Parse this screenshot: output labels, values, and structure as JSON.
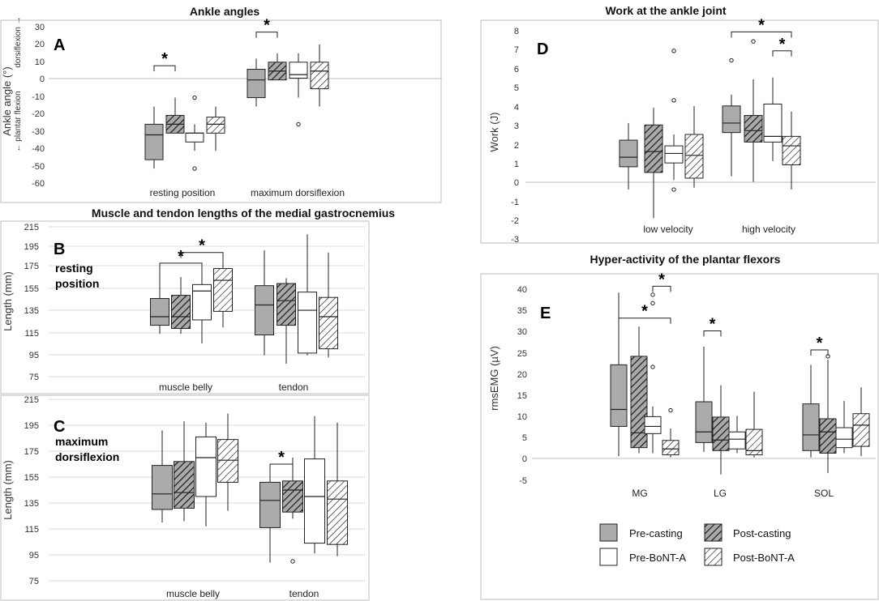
{
  "legend": {
    "entries": [
      {
        "name": "Pre-casting",
        "fill": "gray"
      },
      {
        "name": "Post-casting",
        "fill": "dark-hatch"
      },
      {
        "name": "Pre-BoNT-A",
        "fill": "white"
      },
      {
        "name": "Post-BoNT-A",
        "fill": "hatch"
      }
    ]
  },
  "colors": {
    "pre_casting": "#ababab",
    "dark_hatch_bg": "#a9a9a9",
    "box_edge": "#222222",
    "frame": "#bdbdbd",
    "grid": "#d9d9d9"
  },
  "chart_data": [
    {
      "id": "A",
      "panel_label": "A",
      "type": "box",
      "title": "Ankle angles",
      "ylabel": "Ankle angle (°)",
      "y_annotations": {
        "upper": "dorsiflexion →",
        "lower": "← plantar flexion"
      },
      "ylim": [
        -60,
        30
      ],
      "yticks": [
        -60,
        -50,
        -40,
        -30,
        -20,
        -10,
        0,
        10,
        20,
        30
      ],
      "grid": false,
      "categories": [
        "resting position",
        "maximum dorsiflexion"
      ],
      "series": [
        "Pre-casting",
        "Post-casting",
        "Pre-BoNT-A",
        "Post-BoNT-A"
      ],
      "boxes": [
        [
          {
            "min": -50,
            "q1": -45,
            "median": -31,
            "q3": -25,
            "max": -15,
            "outliers": []
          },
          {
            "min": -30,
            "q1": -30,
            "median": -25,
            "q3": -20,
            "max": -10,
            "outliers": []
          },
          {
            "min": -40,
            "q1": -35,
            "median": -30,
            "q3": -30,
            "max": -25,
            "outliers": [
              -10,
              -50
            ]
          },
          {
            "min": -40,
            "q1": -30,
            "median": -25,
            "q3": -21,
            "max": -15,
            "outliers": []
          }
        ],
        [
          {
            "min": -15,
            "q1": -10,
            "median": 0,
            "q3": 6,
            "max": 12,
            "outliers": []
          },
          {
            "min": 0,
            "q1": 0,
            "median": 5,
            "q3": 10,
            "max": 15,
            "outliers": []
          },
          {
            "min": -10,
            "q1": 1,
            "median": 3,
            "q3": 10,
            "max": 15,
            "outliers": [
              -25
            ]
          },
          {
            "min": -15,
            "q1": -5,
            "median": 5,
            "q3": 10,
            "max": 20,
            "outliers": []
          }
        ]
      ],
      "significance": [
        {
          "category": 0,
          "from": 0,
          "to": 1,
          "y": 8
        },
        {
          "category": 1,
          "from": 0,
          "to": 1,
          "y": 27
        }
      ]
    },
    {
      "id": "B",
      "panel_label": "B",
      "type": "box",
      "title": "Muscle and tendon lengths of the medial gastrocnemius",
      "note": [
        "resting",
        "position"
      ],
      "ylabel": "Length (mm)",
      "ylim": [
        75,
        215
      ],
      "yticks": [
        75,
        95,
        115,
        135,
        155,
        175,
        195,
        215
      ],
      "grid": true,
      "categories": [
        "muscle belly",
        "tendon"
      ],
      "series": [
        "Pre-casting",
        "Post-casting",
        "Pre-BoNT-A",
        "Post-BoNT-A"
      ],
      "boxes": [
        [
          {
            "min": 115,
            "q1": 123,
            "median": 131,
            "q3": 148,
            "max": 180,
            "outliers": []
          },
          {
            "min": 115,
            "q1": 120,
            "median": 131,
            "q3": 151,
            "max": 168,
            "outliers": []
          },
          {
            "min": 106,
            "q1": 128,
            "median": 155,
            "q3": 161,
            "max": 180,
            "outliers": []
          },
          {
            "min": 121,
            "q1": 136,
            "median": 165,
            "q3": 176,
            "max": 190,
            "outliers": []
          }
        ],
        [
          {
            "min": 95,
            "q1": 114,
            "median": 142,
            "q3": 160,
            "max": 193,
            "outliers": []
          },
          {
            "min": 87,
            "q1": 123,
            "median": 146,
            "q3": 162,
            "max": 167,
            "outliers": []
          },
          {
            "min": 95,
            "q1": 97,
            "median": 137,
            "q3": 154,
            "max": 208,
            "outliers": []
          },
          {
            "min": 93,
            "q1": 101,
            "median": 131,
            "q3": 149,
            "max": 191,
            "outliers": []
          }
        ]
      ],
      "significance": [
        {
          "category": 0,
          "from": 0,
          "to": 2,
          "y": 181
        },
        {
          "category": 0,
          "from": 1,
          "to": 3,
          "y": 191
        }
      ]
    },
    {
      "id": "C",
      "panel_label": "C",
      "type": "box",
      "note": [
        "maximum",
        "dorsiflexion"
      ],
      "ylabel": "Length (mm)",
      "ylim": [
        75,
        215
      ],
      "yticks": [
        75,
        95,
        115,
        135,
        155,
        175,
        195,
        215
      ],
      "grid": true,
      "categories": [
        "muscle belly",
        "tendon"
      ],
      "series": [
        "Pre-casting",
        "Post-casting",
        "Pre-BoNT-A",
        "Post-BoNT-A"
      ],
      "boxes": [
        [
          {
            "min": 120,
            "q1": 130,
            "median": 142,
            "q3": 164,
            "max": 191,
            "outliers": []
          },
          {
            "min": 121,
            "q1": 131,
            "median": 143,
            "q3": 167,
            "max": 198,
            "outliers": []
          },
          {
            "min": 117,
            "q1": 140,
            "median": 170,
            "q3": 186,
            "max": 197,
            "outliers": []
          },
          {
            "min": 129,
            "q1": 151,
            "median": 168,
            "q3": 184,
            "max": 204,
            "outliers": []
          }
        ],
        [
          {
            "min": 89,
            "q1": 116,
            "median": 137,
            "q3": 151,
            "max": 161,
            "outliers": []
          },
          {
            "min": 123,
            "q1": 128,
            "median": 145,
            "q3": 152,
            "max": 170,
            "outliers": [
              90
            ]
          },
          {
            "min": 96,
            "q1": 104,
            "median": 140,
            "q3": 169,
            "max": 202,
            "outliers": []
          },
          {
            "min": 94,
            "q1": 103,
            "median": 138,
            "q3": 152,
            "max": 197,
            "outliers": []
          }
        ]
      ],
      "significance": [
        {
          "category": 1,
          "from": 0,
          "to": 1,
          "y": 165
        }
      ]
    },
    {
      "id": "D",
      "panel_label": "D",
      "type": "box",
      "title": "Work at the ankle joint",
      "ylabel": "Work (J)",
      "ylim": [
        -3,
        8
      ],
      "yticks": [
        -3,
        -2,
        -1,
        0,
        1,
        2,
        3,
        4,
        5,
        6,
        7,
        8
      ],
      "grid": false,
      "categories": [
        "low velocity",
        "high velocity"
      ],
      "series": [
        "Pre-casting",
        "Post-casting",
        "Pre-BoNT-A",
        "Post-BoNT-A"
      ],
      "boxes": [
        [
          {
            "min": -0.4,
            "q1": 0.8,
            "median": 1.3,
            "q3": 2.2,
            "max": 3.1,
            "outliers": []
          },
          {
            "min": -1.9,
            "q1": 0.5,
            "median": 1.6,
            "q3": 3.0,
            "max": 3.9,
            "outliers": []
          },
          {
            "min": 0.1,
            "q1": 1.0,
            "median": 1.5,
            "q3": 1.9,
            "max": 2.5,
            "outliers": [
              6.9,
              4.3,
              -0.4
            ]
          },
          {
            "min": -0.3,
            "q1": 0.2,
            "median": 1.4,
            "q3": 2.5,
            "max": 4.0,
            "outliers": []
          }
        ],
        [
          {
            "min": 0.3,
            "q1": 2.6,
            "median": 3.1,
            "q3": 4.0,
            "max": 4.6,
            "outliers": [
              6.4
            ]
          },
          {
            "min": 0.0,
            "q1": 2.1,
            "median": 2.7,
            "q3": 3.5,
            "max": 5.4,
            "outliers": [
              7.4
            ]
          },
          {
            "min": 1.1,
            "q1": 2.1,
            "median": 2.4,
            "q3": 4.1,
            "max": 5.5,
            "outliers": []
          },
          {
            "min": -0.4,
            "q1": 0.9,
            "median": 1.9,
            "q3": 2.4,
            "max": 3.7,
            "outliers": []
          }
        ]
      ],
      "significance": [
        {
          "category": 1,
          "from": 0,
          "to": 3,
          "y": 7.9
        },
        {
          "category": 1,
          "from": 2,
          "to": 3,
          "y": 6.9
        }
      ]
    },
    {
      "id": "E",
      "panel_label": "E",
      "type": "box",
      "title": "Hyper-activity of the plantar flexors",
      "ylabel": "rmsEMG (µV)",
      "ylim": [
        -5,
        40
      ],
      "yticks": [
        -5,
        0,
        5,
        10,
        15,
        20,
        25,
        30,
        35,
        40
      ],
      "grid": false,
      "categories": [
        "MG",
        "LG",
        "SOL"
      ],
      "series": [
        "Pre-casting",
        "Post-casting",
        "Pre-BoNT-A",
        "Post-BoNT-A"
      ],
      "boxes": [
        [
          {
            "min": 0.5,
            "q1": 7.5,
            "median": 11.5,
            "q3": 22,
            "max": 39,
            "outliers": []
          },
          {
            "min": 1.2,
            "q1": 2.5,
            "median": 6,
            "q3": 24,
            "max": 31,
            "outliers": []
          },
          {
            "min": 1.2,
            "q1": 5.8,
            "median": 7.5,
            "q3": 9.8,
            "max": 12.2,
            "outliers": [
              38.5,
              36.5,
              21.5
            ]
          },
          {
            "min": 0.2,
            "q1": 0.8,
            "median": 2.2,
            "q3": 4.2,
            "max": 7,
            "outliers": [
              11.3
            ]
          }
        ],
        [
          {
            "min": 1.5,
            "q1": 3.7,
            "median": 6.2,
            "q3": 13.3,
            "max": 26.3,
            "outliers": []
          },
          {
            "min": -3.8,
            "q1": 1.8,
            "median": 4.3,
            "q3": 9.7,
            "max": 17.2,
            "outliers": []
          },
          {
            "min": 1.2,
            "q1": 2.2,
            "median": 4.5,
            "q3": 6.2,
            "max": 10,
            "outliers": []
          },
          {
            "min": 0.2,
            "q1": 0.8,
            "median": 1.8,
            "q3": 6.8,
            "max": 15.7,
            "outliers": []
          }
        ],
        [
          {
            "min": 0.2,
            "q1": 1.8,
            "median": 5.5,
            "q3": 12.8,
            "max": 22,
            "outliers": []
          },
          {
            "min": -3.5,
            "q1": 1.2,
            "median": 6.2,
            "q3": 9.3,
            "max": 23.2,
            "outliers": [
              24
            ]
          },
          {
            "min": 1.2,
            "q1": 2.5,
            "median": 4.5,
            "q3": 7.2,
            "max": 13.5,
            "outliers": []
          },
          {
            "min": 0.5,
            "q1": 2.8,
            "median": 7.8,
            "q3": 10.5,
            "max": 16.7,
            "outliers": []
          }
        ]
      ],
      "significance": [
        {
          "category": 0,
          "from": 2,
          "to": 3,
          "y": 40.5
        },
        {
          "category": 0,
          "from": 0,
          "to": 3,
          "y": 33
        },
        {
          "category": 1,
          "from": 0,
          "to": 1,
          "y": 30
        },
        {
          "category": 2,
          "from": 0,
          "to": 1,
          "y": 25.5
        }
      ]
    }
  ]
}
